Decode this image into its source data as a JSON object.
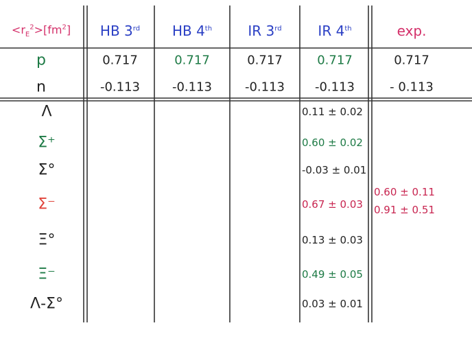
{
  "header": {
    "corner": [
      "<r",
      "E",
      "2",
      ">[fm",
      "2",
      "]"
    ],
    "columns": [
      {
        "text": "HB 3",
        "sup": "rd"
      },
      {
        "text": "HB 4",
        "sup": "th"
      },
      {
        "text": "IR 3",
        "sup": "rd"
      },
      {
        "text": "IR 4",
        "sup": "th"
      },
      {
        "text": "exp."
      }
    ]
  },
  "nucleons": [
    {
      "label": "p",
      "cells": [
        "0.717",
        "0.717",
        "0.717",
        "0.717",
        "0.717"
      ]
    },
    {
      "label": "n",
      "cells": [
        "-0.113",
        "-0.113",
        "-0.113",
        "-0.113",
        "- 0.113"
      ]
    }
  ],
  "hyperons": [
    {
      "label": "Λ",
      "ir4": "0.11 ± 0.02"
    },
    {
      "label": "Σ⁺",
      "ir4": "0.60 ± 0.02"
    },
    {
      "label": "Σ°",
      "ir4": "-0.03 ± 0.01"
    },
    {
      "label": "Σ⁻",
      "ir4": "0.67 ± 0.03",
      "exp": [
        "0.60 ± 0.11",
        "0.91 ± 0.51"
      ]
    },
    {
      "label": "Ξ°",
      "ir4": "0.13 ± 0.03"
    },
    {
      "label": "Ξ⁻",
      "ir4": "0.49 ± 0.05"
    },
    {
      "label": "Λ-Σ°",
      "ir4": "0.03 ± 0.01"
    }
  ]
}
